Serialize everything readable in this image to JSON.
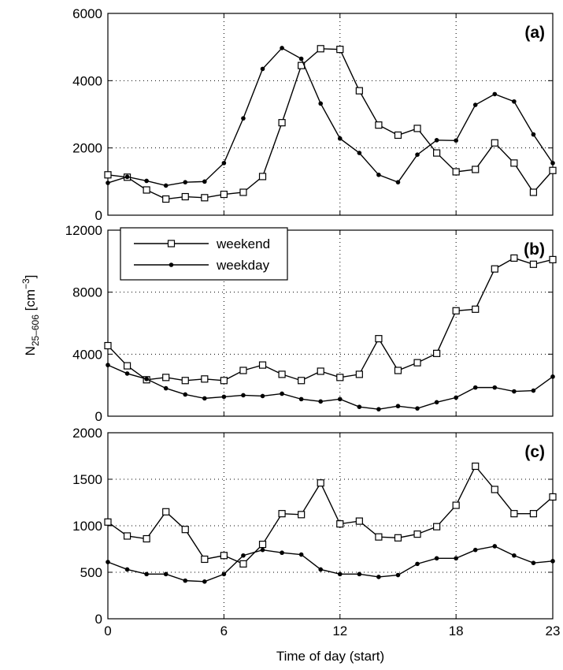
{
  "chart_data": [
    {
      "type": "line",
      "panel_label": "(a)",
      "x": [
        0,
        1,
        2,
        3,
        4,
        5,
        6,
        7,
        8,
        9,
        10,
        11,
        12,
        13,
        14,
        15,
        16,
        17,
        18,
        19,
        20,
        21,
        22,
        23
      ],
      "ylim": [
        0,
        6000
      ],
      "yticks": [
        0,
        2000,
        4000,
        6000
      ],
      "series": [
        {
          "name": "weekend",
          "marker": "square",
          "values": [
            1200,
            1130,
            750,
            480,
            550,
            520,
            620,
            680,
            1150,
            2750,
            4450,
            4950,
            4930,
            3700,
            2680,
            2380,
            2580,
            1850,
            1290,
            1360,
            2150,
            1550,
            680,
            1330
          ]
        },
        {
          "name": "weekday",
          "marker": "dot",
          "values": [
            960,
            1140,
            1020,
            880,
            980,
            1000,
            1550,
            2880,
            4350,
            4970,
            4650,
            3320,
            2280,
            1850,
            1200,
            980,
            1800,
            2230,
            2220,
            3280,
            3600,
            3380,
            2400,
            1550
          ]
        }
      ]
    },
    {
      "type": "line",
      "panel_label": "(b)",
      "x": [
        0,
        1,
        2,
        3,
        4,
        5,
        6,
        7,
        8,
        9,
        10,
        11,
        12,
        13,
        14,
        15,
        16,
        17,
        18,
        19,
        20,
        21,
        22,
        23
      ],
      "ylim": [
        0,
        12000
      ],
      "yticks": [
        0,
        4000,
        8000,
        12000
      ],
      "series": [
        {
          "name": "weekend",
          "marker": "square",
          "values": [
            4550,
            3250,
            2350,
            2500,
            2300,
            2400,
            2300,
            2950,
            3300,
            2700,
            2300,
            2900,
            2500,
            2700,
            5000,
            2950,
            3450,
            4050,
            6800,
            6900,
            9500,
            10200,
            9800,
            10100
          ]
        },
        {
          "name": "weekday",
          "marker": "dot",
          "values": [
            3300,
            2750,
            2400,
            1800,
            1400,
            1150,
            1250,
            1350,
            1300,
            1450,
            1100,
            950,
            1100,
            600,
            450,
            650,
            500,
            900,
            1200,
            1850,
            1850,
            1600,
            1650,
            2550
          ]
        }
      ]
    },
    {
      "type": "line",
      "panel_label": "(c)",
      "x": [
        0,
        1,
        2,
        3,
        4,
        5,
        6,
        7,
        8,
        9,
        10,
        11,
        12,
        13,
        14,
        15,
        16,
        17,
        18,
        19,
        20,
        21,
        22,
        23
      ],
      "ylim": [
        0,
        2000
      ],
      "yticks": [
        0,
        500,
        1000,
        1500,
        2000
      ],
      "series": [
        {
          "name": "weekend",
          "marker": "square",
          "values": [
            1040,
            890,
            860,
            1150,
            960,
            640,
            680,
            590,
            800,
            1130,
            1120,
            1460,
            1020,
            1050,
            880,
            870,
            910,
            990,
            1220,
            1640,
            1390,
            1130,
            1130,
            1310
          ]
        },
        {
          "name": "weekday",
          "marker": "dot",
          "values": [
            610,
            530,
            480,
            480,
            410,
            400,
            480,
            680,
            740,
            710,
            690,
            530,
            480,
            480,
            450,
            470,
            590,
            650,
            650,
            740,
            780,
            680,
            600,
            620
          ]
        }
      ]
    }
  ],
  "axes": {
    "xlim": [
      0,
      23
    ],
    "xticks": [
      0,
      6,
      12,
      18,
      23
    ],
    "xlabel": "Time of day (start)",
    "ylabel_main": "N",
    "ylabel_sub": "25–606",
    "ylabel_unit_open": " [cm",
    "ylabel_unit_exp": "−3",
    "ylabel_unit_close": "]"
  },
  "legend": {
    "placement": "top-left of panel (b)",
    "entries": [
      "weekend",
      "weekday"
    ]
  },
  "grid": "dotted",
  "colors": {
    "line": "#000000",
    "grid": "#000000",
    "background": "#ffffff"
  }
}
